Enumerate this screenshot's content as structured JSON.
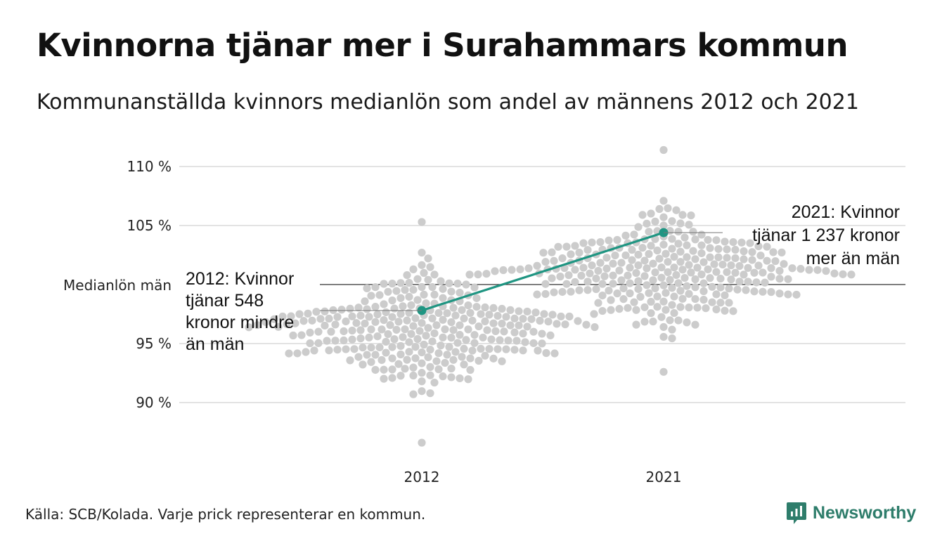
{
  "title": "Kvinnorna tjänar mer i Surahammars kommun",
  "subtitle": "Kommunanställda kvinnors medianlön som andel av männens 2012 och 2021",
  "source": "Källa: SCB/Kolada. Varje prick representerar en kommun.",
  "brand": "Newsworthy",
  "colors": {
    "dots": "#cccccc",
    "highlight": "#1f9582",
    "grid": "#e3e3e3",
    "reference": "#333333",
    "brand": "#2e7d6b"
  },
  "chart_data": {
    "type": "scatter",
    "subtype": "beeswarm",
    "categories": [
      "2012",
      "2021"
    ],
    "ylim": [
      86,
      112
    ],
    "yticks": [
      {
        "value": 90,
        "label": "90 %"
      },
      {
        "value": 95,
        "label": "95 %"
      },
      {
        "value": 105,
        "label": "105 %"
      },
      {
        "value": 110,
        "label": "110 %"
      }
    ],
    "reference_line": {
      "value": 100,
      "label": "Medianlön män"
    },
    "grid": true,
    "swarm": [
      {
        "category": "2012",
        "count": 290,
        "center": 96.3,
        "spread": 2.1,
        "min": 86.6,
        "max": 105.3
      },
      {
        "category": "2021",
        "count": 290,
        "center": 101.3,
        "spread": 2.1,
        "min": 92.6,
        "max": 111.4
      }
    ],
    "highlight": {
      "name": "Surahammar",
      "points": [
        {
          "x": "2012",
          "y": 97.8,
          "annotation": [
            "2012: Kvinnor",
            "tjänar 548",
            "kronor mindre",
            "än män"
          ]
        },
        {
          "x": "2021",
          "y": 104.4,
          "annotation": [
            "2021: Kvinnor",
            "tjänar 1 237 kronor",
            "mer än män"
          ]
        }
      ]
    }
  }
}
